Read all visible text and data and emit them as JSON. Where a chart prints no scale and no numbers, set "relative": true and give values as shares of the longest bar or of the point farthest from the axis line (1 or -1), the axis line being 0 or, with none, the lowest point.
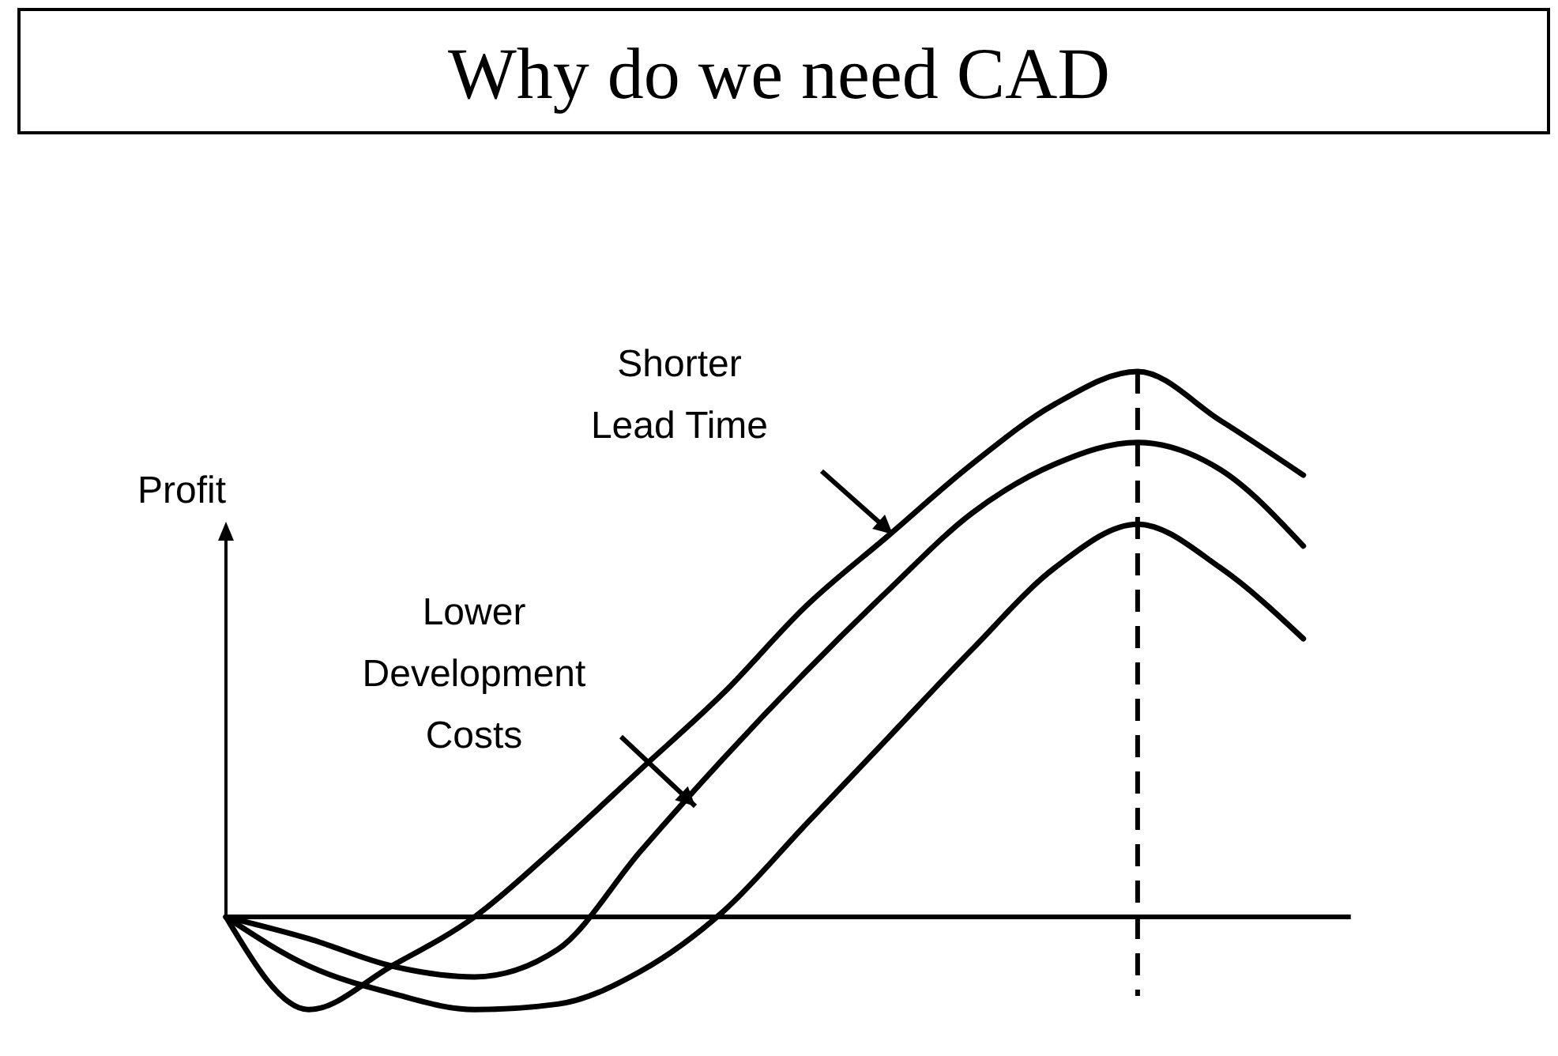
{
  "chart_data": {
    "type": "line",
    "title": "Why do we need CAD",
    "ylabel": "Profit",
    "relative": true,
    "line_style": "solid",
    "categories": [
      null,
      null,
      null,
      null,
      null,
      null,
      null,
      null,
      null,
      null,
      null,
      null,
      null,
      null
    ],
    "series": [
      {
        "color": "#000000",
        "values": [
          0,
          -0.17,
          -0.09,
          0,
          0.13,
          0.27,
          0.41,
          0.57,
          0.7,
          0.83,
          0.94,
          1,
          0.91,
          0.81
        ]
      },
      {
        "color": "#000000",
        "values": [
          0,
          -0.04,
          -0.09,
          -0.11,
          -0.06,
          0.12,
          0.29,
          0.45,
          0.6,
          0.74,
          0.83,
          0.87,
          0.82,
          0.68
        ]
      },
      {
        "color": "#000000",
        "values": [
          0,
          -0.09,
          -0.14,
          -0.17,
          -0.16,
          -0.1,
          0.01,
          0.17,
          0.33,
          0.49,
          0.64,
          0.72,
          0.64,
          0.51
        ]
      }
    ],
    "annotations": [
      "Shorter\nLead Time",
      "Lower\nDevelopment\nCosts"
    ]
  }
}
